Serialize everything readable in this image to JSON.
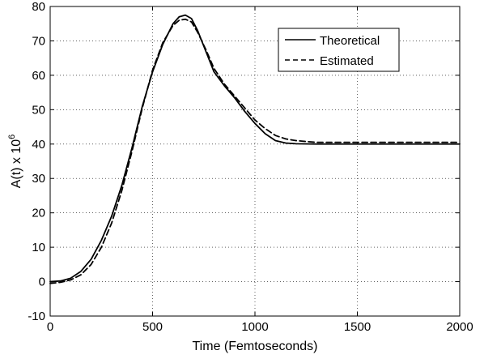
{
  "chart_data": {
    "type": "line",
    "title": "",
    "xlabel": "Time (Femtoseconds)",
    "ylabel_base": "A(t) x 10",
    "ylabel_exponent": "6",
    "xlim": [
      0,
      2000
    ],
    "ylim": [
      -10,
      80
    ],
    "x_ticks": [
      "0",
      "500",
      "1000",
      "1500",
      "2000"
    ],
    "y_ticks": [
      "-10",
      "0",
      "10",
      "20",
      "30",
      "40",
      "50",
      "60",
      "70",
      "80"
    ],
    "grid": true,
    "legend_position": "top-right",
    "series": [
      {
        "name": "Theoretical",
        "style": "solid",
        "color": "#000000",
        "x": [
          0,
          50,
          100,
          150,
          200,
          250,
          300,
          350,
          400,
          450,
          500,
          550,
          600,
          630,
          660,
          690,
          720,
          760,
          800,
          850,
          900,
          950,
          1000,
          1050,
          1100,
          1150,
          1200,
          1300,
          1400,
          1500,
          1600,
          1700,
          1800,
          1900,
          2000
        ],
        "y": [
          0,
          0.2,
          1,
          3,
          6.5,
          12,
          19,
          28,
          39,
          51,
          61,
          69,
          75,
          77,
          77.5,
          76.5,
          73,
          67,
          61,
          57,
          53.5,
          49.5,
          46,
          43,
          41,
          40.3,
          40.1,
          40,
          40,
          40,
          40,
          40,
          40,
          40,
          40
        ]
      },
      {
        "name": "Estimated",
        "style": "dashed",
        "color": "#000000",
        "x": [
          0,
          50,
          100,
          150,
          200,
          250,
          300,
          350,
          400,
          450,
          500,
          550,
          600,
          630,
          660,
          690,
          720,
          760,
          800,
          850,
          900,
          950,
          1000,
          1050,
          1100,
          1150,
          1200,
          1300,
          1400,
          1500,
          1600,
          1700,
          1800,
          1900,
          2000
        ],
        "y": [
          -0.5,
          -0.2,
          0.5,
          2,
          5,
          10,
          17,
          26.5,
          38,
          50.5,
          61.5,
          69.5,
          74.5,
          76,
          76.3,
          75.5,
          72.5,
          67.5,
          62,
          57.5,
          54,
          50.5,
          47,
          44.5,
          42.5,
          41.5,
          41,
          40.5,
          40.5,
          40.5,
          40.5,
          40.5,
          40.5,
          40.5,
          40.5
        ]
      }
    ]
  }
}
